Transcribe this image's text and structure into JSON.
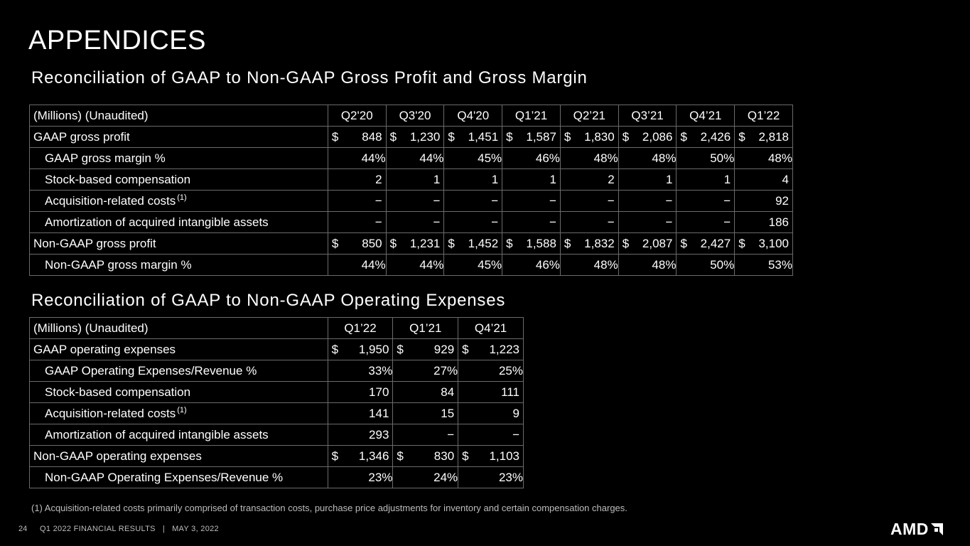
{
  "title": "APPENDICES",
  "gp": {
    "heading": "Reconciliation of GAAP to Non-GAAP Gross Profit and Gross Margin",
    "header_label": "(Millions) (Unaudited)",
    "quarters": [
      "Q2'20",
      "Q3'20",
      "Q4'20",
      "Q1’21",
      "Q2’21",
      "Q3’21",
      "Q4’21",
      "Q1’22"
    ],
    "rows": [
      {
        "label": "GAAP gross profit",
        "style": "dollar",
        "values": [
          "848",
          "1,230",
          "1,451",
          "1,587",
          "1,830",
          "2,086",
          "2,426",
          "2,818"
        ]
      },
      {
        "label": "GAAP gross margin %",
        "style": "pct",
        "indent": true,
        "values": [
          "44%",
          "44%",
          "45%",
          "46%",
          "48%",
          "48%",
          "50%",
          "48%"
        ]
      },
      {
        "label": "Stock-based compensation",
        "style": "num",
        "indent": true,
        "values": [
          "2",
          "1",
          "1",
          "1",
          "2",
          "1",
          "1",
          "4"
        ]
      },
      {
        "label": "Acquisition-related costs",
        "sup": "(1)",
        "style": "num",
        "indent": true,
        "values": [
          "−",
          "−",
          "−",
          "−",
          "−",
          "−",
          "−",
          "92"
        ]
      },
      {
        "label": "Amortization of acquired intangible assets",
        "style": "num",
        "indent": true,
        "values": [
          "−",
          "−",
          "−",
          "−",
          "−",
          "−",
          "−",
          "186"
        ]
      },
      {
        "label": "Non-GAAP gross profit",
        "style": "dollar",
        "values": [
          "850",
          "1,231",
          "1,452",
          "1,588",
          "1,832",
          "2,087",
          "2,427",
          "3,100"
        ]
      },
      {
        "label": "Non-GAAP gross margin %",
        "style": "pct",
        "indent": true,
        "values": [
          "44%",
          "44%",
          "45%",
          "46%",
          "48%",
          "48%",
          "50%",
          "53%"
        ]
      }
    ]
  },
  "opex": {
    "heading": "Reconciliation of GAAP to Non-GAAP Operating Expenses",
    "header_label": "(Millions) (Unaudited)",
    "quarters": [
      "Q1’22",
      "Q1’21",
      "Q4’21"
    ],
    "rows": [
      {
        "label": "GAAP operating expenses",
        "style": "dollar",
        "values": [
          "1,950",
          "929",
          "1,223"
        ]
      },
      {
        "label": "GAAP Operating Expenses/Revenue %",
        "style": "pct",
        "indent": true,
        "values": [
          "33%",
          "27%",
          "25%"
        ]
      },
      {
        "label": "Stock-based compensation",
        "style": "num",
        "indent": true,
        "values": [
          "170",
          "84",
          "111"
        ]
      },
      {
        "label": "Acquisition-related costs",
        "sup": "(1)",
        "style": "num",
        "indent": true,
        "values": [
          "141",
          "15",
          "9"
        ]
      },
      {
        "label": "Amortization of acquired intangible assets",
        "style": "num",
        "indent": true,
        "values": [
          "293",
          "−",
          "−"
        ]
      },
      {
        "label": "Non-GAAP operating expenses",
        "style": "dollar",
        "values": [
          "1,346",
          "830",
          "1,103"
        ]
      },
      {
        "label": "Non-GAAP Operating Expenses/Revenue %",
        "style": "pct",
        "indent": true,
        "values": [
          "23%",
          "24%",
          "23%"
        ]
      }
    ]
  },
  "currency_symbol": "$",
  "footnote": "(1)  Acquisition-related costs primarily comprised of transaction costs, purchase price adjustments for inventory and certain compensation charges.",
  "footer": {
    "page_number": "24",
    "page_info": "Q1 2022 FINANCIAL RESULTS   |   MAY 3, 2022",
    "logo_text": "AMD",
    "logo_icon": "amd-arrow-icon"
  }
}
